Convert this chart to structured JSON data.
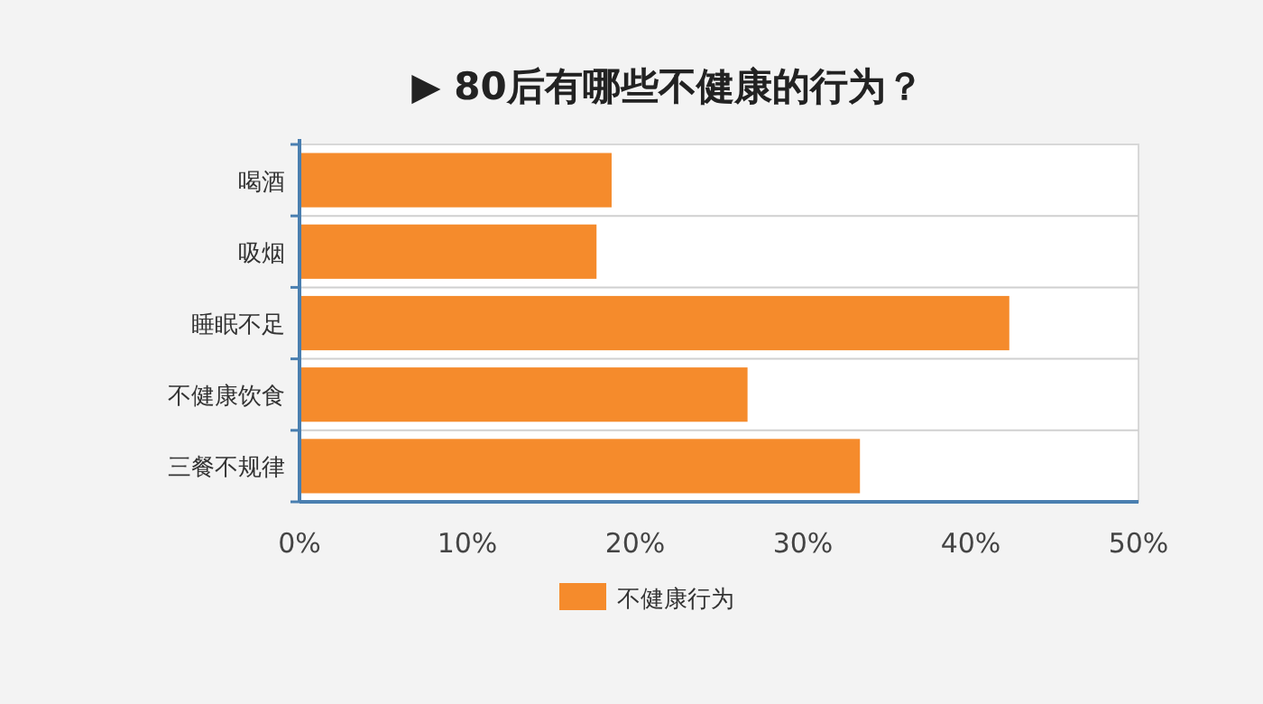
{
  "chart_data": {
    "type": "bar",
    "orientation": "horizontal",
    "title": "▶ 80后有哪些不健康的行为？",
    "categories": [
      "喝酒",
      "吸烟",
      "睡眠不足",
      "不健康饮食",
      "三餐不规律"
    ],
    "series": [
      {
        "name": "不健康行为",
        "color": "#f58b2c",
        "values": [
          18.6,
          17.7,
          42.3,
          26.7,
          33.4
        ]
      }
    ],
    "xlim": [
      0,
      50
    ],
    "xticks": [
      {
        "value": 0,
        "label": "0%"
      },
      {
        "value": 10,
        "label": "10%"
      },
      {
        "value": 20,
        "label": "20%"
      },
      {
        "value": 30,
        "label": "30%"
      },
      {
        "value": 40,
        "label": "40%"
      },
      {
        "value": 50,
        "label": "50%"
      }
    ],
    "grid": "y",
    "legend": "bottom"
  }
}
